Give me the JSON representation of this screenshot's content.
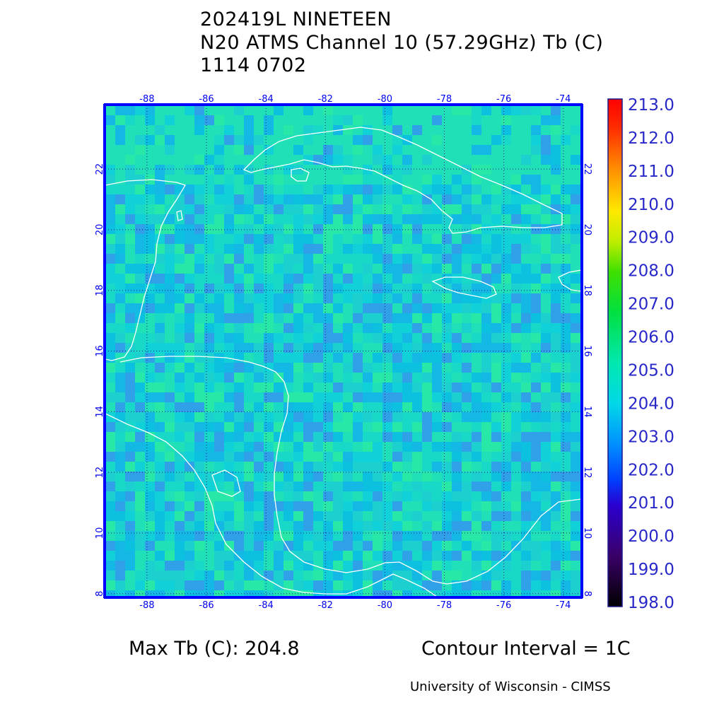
{
  "header": {
    "storm_id": "202419L NINETEEN",
    "product": "N20 ATMS Channel 10 (57.29GHz) Tb (C)",
    "datetime": "1114 0702"
  },
  "map": {
    "lon_labels": [
      "-88",
      "-86",
      "-84",
      "-82",
      "-80",
      "-78",
      "-76",
      "-74"
    ],
    "lat_labels": [
      "8",
      "10",
      "12",
      "14",
      "16",
      "18",
      "20",
      "22"
    ],
    "lon_range": [
      -89.4,
      -73.4
    ],
    "lat_range": [
      7.9,
      24.1
    ],
    "coastline_color": "#ffffff",
    "grid_color": "#1a1a8c",
    "frame_color": "#0000ff"
  },
  "colorbar": {
    "labels": [
      "213.0",
      "212.0",
      "211.0",
      "210.0",
      "209.0",
      "208.0",
      "207.0",
      "206.0",
      "205.0",
      "204.0",
      "203.0",
      "202.0",
      "201.0",
      "200.0",
      "199.0",
      "198.0"
    ],
    "min": 198.0,
    "max": 213.0
  },
  "footer": {
    "max_tb": "Max Tb (C): 204.8",
    "contour_interval": "Contour Interval = 1C",
    "credit": "University of Wisconsin - CIMSS"
  }
}
